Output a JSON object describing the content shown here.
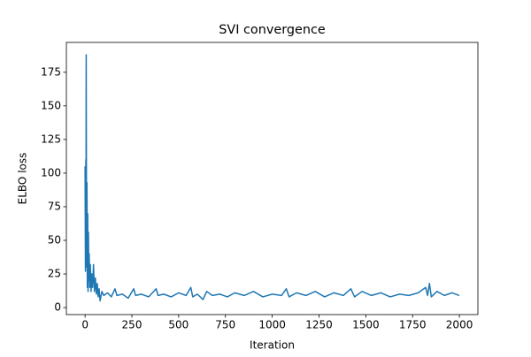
{
  "chart_data": {
    "type": "line",
    "title": "SVI convergence",
    "x_label": "Iteration",
    "y_label": "ELBO loss",
    "x": [
      0,
      2,
      4,
      5,
      6,
      8,
      10,
      12,
      14,
      16,
      18,
      20,
      22,
      25,
      28,
      32,
      36,
      40,
      45,
      50,
      55,
      60,
      65,
      70,
      75,
      80,
      90,
      100,
      120,
      140,
      160,
      170,
      200,
      230,
      260,
      270,
      300,
      340,
      380,
      390,
      420,
      460,
      500,
      540,
      565,
      575,
      600,
      630,
      650,
      680,
      720,
      760,
      800,
      850,
      900,
      950,
      1000,
      1050,
      1075,
      1090,
      1130,
      1180,
      1230,
      1280,
      1330,
      1380,
      1420,
      1440,
      1480,
      1530,
      1580,
      1630,
      1680,
      1730,
      1780,
      1820,
      1830,
      1840,
      1850,
      1880,
      1920,
      1960,
      1999
    ],
    "series": [
      {
        "name": "ELBO loss",
        "color": "#1f77b4",
        "values": [
          105,
          27,
          110,
          60,
          188,
          30,
          93,
          15,
          70,
          12,
          56,
          20,
          40,
          15,
          32,
          12,
          25,
          15,
          32,
          12,
          22,
          10,
          18,
          8,
          14,
          5,
          12,
          9,
          11,
          8,
          14,
          9,
          10,
          7,
          14,
          9,
          10,
          8,
          14,
          9,
          10,
          8,
          11,
          9,
          15,
          8,
          10,
          6,
          12,
          9,
          10,
          8,
          11,
          9,
          12,
          8,
          10,
          9,
          14,
          8,
          11,
          9,
          12,
          8,
          11,
          9,
          14,
          8,
          12,
          9,
          11,
          8,
          10,
          9,
          11,
          15,
          9,
          18,
          8,
          12,
          9,
          11,
          9
        ]
      }
    ],
    "xlim": [
      -99.95,
      2098.95
    ],
    "ylim": [
      -5.2,
      197.2
    ],
    "xticks": [
      0,
      250,
      500,
      750,
      1000,
      1250,
      1500,
      1750,
      2000
    ],
    "yticks": [
      0,
      25,
      50,
      75,
      100,
      125,
      150,
      175
    ]
  }
}
